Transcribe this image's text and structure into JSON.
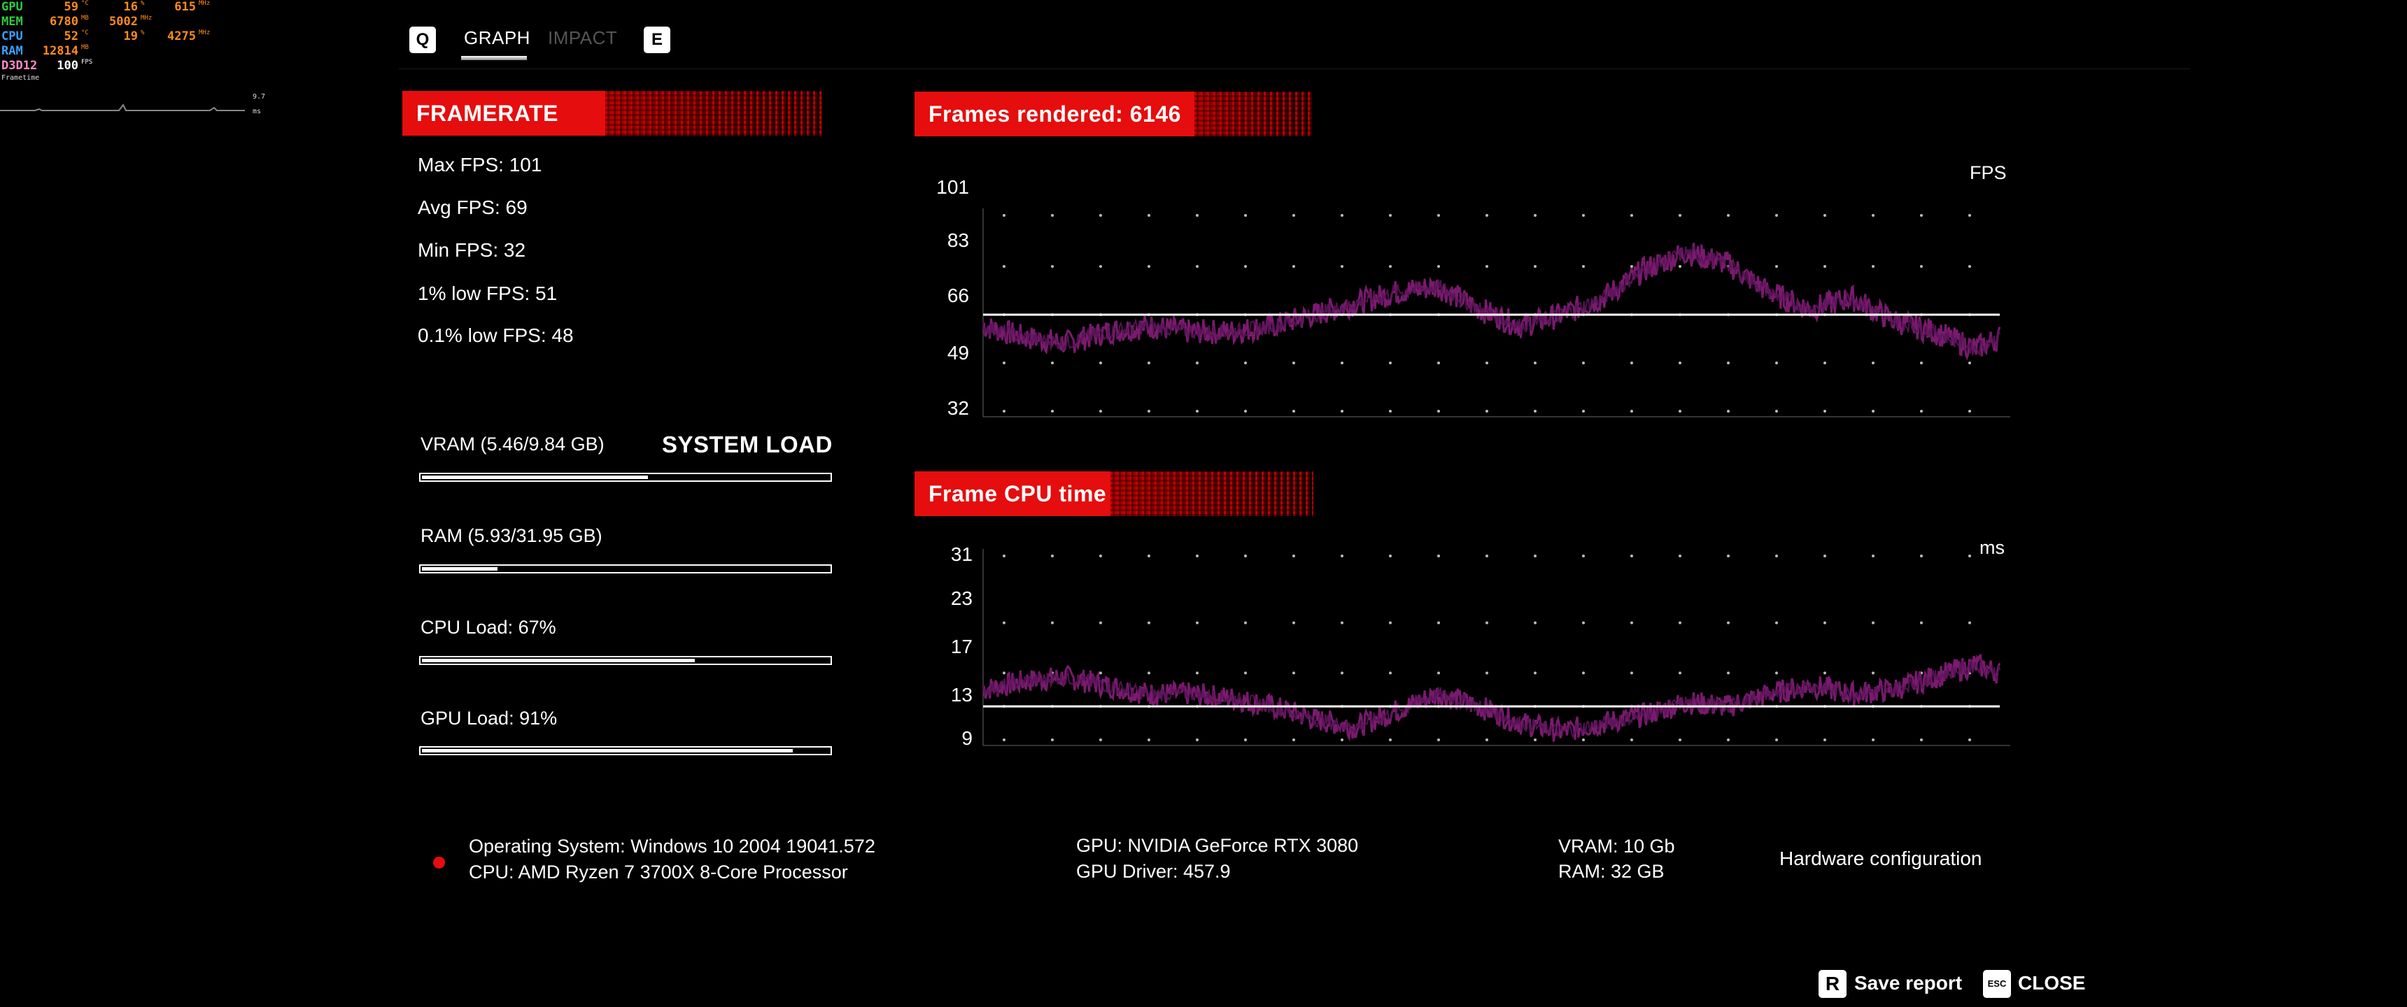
{
  "overlay": {
    "rows": [
      {
        "label": "GPU",
        "color": "#2ecc40",
        "v1": "59",
        "u1": "°C",
        "v2": "16",
        "u2": "%",
        "v3": "615",
        "u3": "MHz"
      },
      {
        "label": "MEM",
        "color": "#2ecc40",
        "v1": "6780",
        "u1": "MB",
        "v2": "5002",
        "u2": "MHz",
        "v3": "",
        "u3": ""
      },
      {
        "label": "CPU",
        "color": "#3aa0ff",
        "v1": "52",
        "u1": "°C",
        "v2": "19",
        "u2": "%",
        "v3": "4275",
        "u3": "MHz"
      },
      {
        "label": "RAM",
        "color": "#3aa0ff",
        "v1": "12814",
        "u1": "MB",
        "v2": "",
        "u2": "",
        "v3": "",
        "u3": ""
      },
      {
        "label": "D3D12",
        "color": "#ff8cc8",
        "v1": "100",
        "u1": "FPS",
        "v2": "",
        "u2": "",
        "v3": "",
        "u3": ""
      }
    ],
    "frametime_label": "Frametime",
    "frametime_range": "9.7 ms"
  },
  "tabs": {
    "left_key": "Q",
    "right_key": "E",
    "items": [
      {
        "label": "GRAPH",
        "active": true
      },
      {
        "label": "IMPACT",
        "active": false
      }
    ]
  },
  "framerate": {
    "header": "FRAMERATE",
    "stats": {
      "max": "Max FPS: 101",
      "avg": "Avg FPS: 69",
      "min": "Min FPS: 32",
      "low1": "1% low FPS: 51",
      "low01": "0.1% low FPS: 48"
    }
  },
  "system_load": {
    "title": "SYSTEM LOAD",
    "items": [
      {
        "label": "VRAM (5.46/9.84 GB)",
        "fraction": 0.555
      },
      {
        "label": "RAM (5.93/31.95 GB)",
        "fraction": 0.186
      },
      {
        "label": "CPU Load: 67%",
        "fraction": 0.67
      },
      {
        "label": "GPU Load: 91%",
        "fraction": 0.91
      }
    ]
  },
  "fps_chart": {
    "header": "Frames rendered: 6146",
    "unit": "FPS",
    "ticks": [
      "101",
      "83",
      "66",
      "49",
      "32"
    ]
  },
  "cpu_chart": {
    "header": "Frame CPU time",
    "unit": "ms",
    "ticks": [
      "31",
      "23",
      "17",
      "13",
      "9"
    ]
  },
  "chart_data": [
    {
      "type": "line",
      "title": "Frames rendered: 6146",
      "ylabel": "FPS",
      "ylim": [
        32,
        101
      ],
      "yticks": [
        101,
        83,
        66,
        49,
        32
      ],
      "average_line": 66,
      "grid": "dotted",
      "color": "#7a1a6e",
      "frames": 6146,
      "x": [
        0,
        250,
        500,
        750,
        1000,
        1250,
        1500,
        1750,
        2000,
        2250,
        2500,
        2750,
        3000,
        3250,
        3500,
        3750,
        4000,
        4250,
        4500,
        4750,
        5000,
        5250,
        5500,
        5750,
        6000,
        6146
      ],
      "y": [
        62,
        58,
        56,
        60,
        62,
        60,
        60,
        62,
        66,
        70,
        74,
        76,
        68,
        62,
        66,
        72,
        82,
        88,
        84,
        74,
        68,
        72,
        64,
        60,
        54,
        58
      ]
    },
    {
      "type": "line",
      "title": "Frame CPU time",
      "ylabel": "ms",
      "ylim": [
        9,
        31
      ],
      "yticks": [
        31,
        23,
        17,
        13,
        9
      ],
      "average_line": 13,
      "grid": "dotted",
      "color": "#7a1a6e",
      "frames": 6146,
      "x": [
        0,
        250,
        500,
        750,
        1000,
        1250,
        1500,
        1750,
        2000,
        2250,
        2500,
        2750,
        3000,
        3250,
        3500,
        3750,
        4000,
        4250,
        4500,
        4750,
        5000,
        5250,
        5500,
        5750,
        6000,
        6146
      ],
      "y": [
        15,
        16,
        16.5,
        15.5,
        14.5,
        14.5,
        14,
        13,
        11.5,
        10.5,
        12.5,
        14.5,
        13,
        11,
        10,
        11,
        12,
        13.5,
        13,
        14.5,
        15.5,
        14.5,
        15,
        16.5,
        18,
        17
      ]
    }
  ],
  "hardware": {
    "os": "Operating System: Windows 10 2004 19041.572",
    "cpu": "CPU: AMD Ryzen 7 3700X 8-Core Processor",
    "gpu": "GPU: NVIDIA GeForce RTX 3080",
    "gpu_driver": "GPU Driver: 457.9",
    "vram": "VRAM: 10 Gb",
    "ram": "RAM: 32 GB",
    "config_label": "Hardware configuration"
  },
  "controls": {
    "save_key": "R",
    "save_label": "Save report",
    "close_key": "ESC",
    "close_label": "CLOSE"
  }
}
